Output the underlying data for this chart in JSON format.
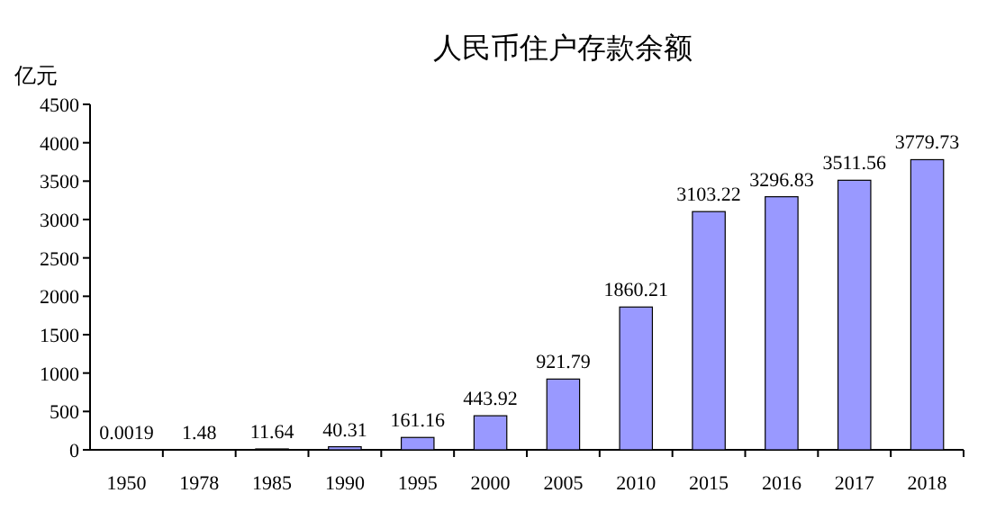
{
  "chart_data": {
    "type": "bar",
    "title": "人民币住户存款余额",
    "ylabel": "亿元",
    "categories": [
      "1950",
      "1978",
      "1985",
      "1990",
      "1995",
      "2000",
      "2005",
      "2010",
      "2015",
      "2016",
      "2017",
      "2018"
    ],
    "values": [
      0.0019,
      1.48,
      11.64,
      40.31,
      161.16,
      443.92,
      921.79,
      1860.21,
      3103.22,
      3296.83,
      3511.56,
      3779.73
    ],
    "color": "#9999ff",
    "ylim": [
      0,
      4500
    ],
    "yticks": [
      0,
      500,
      1000,
      1500,
      2000,
      2500,
      3000,
      3500,
      4000,
      4500
    ],
    "data_labels": true
  }
}
